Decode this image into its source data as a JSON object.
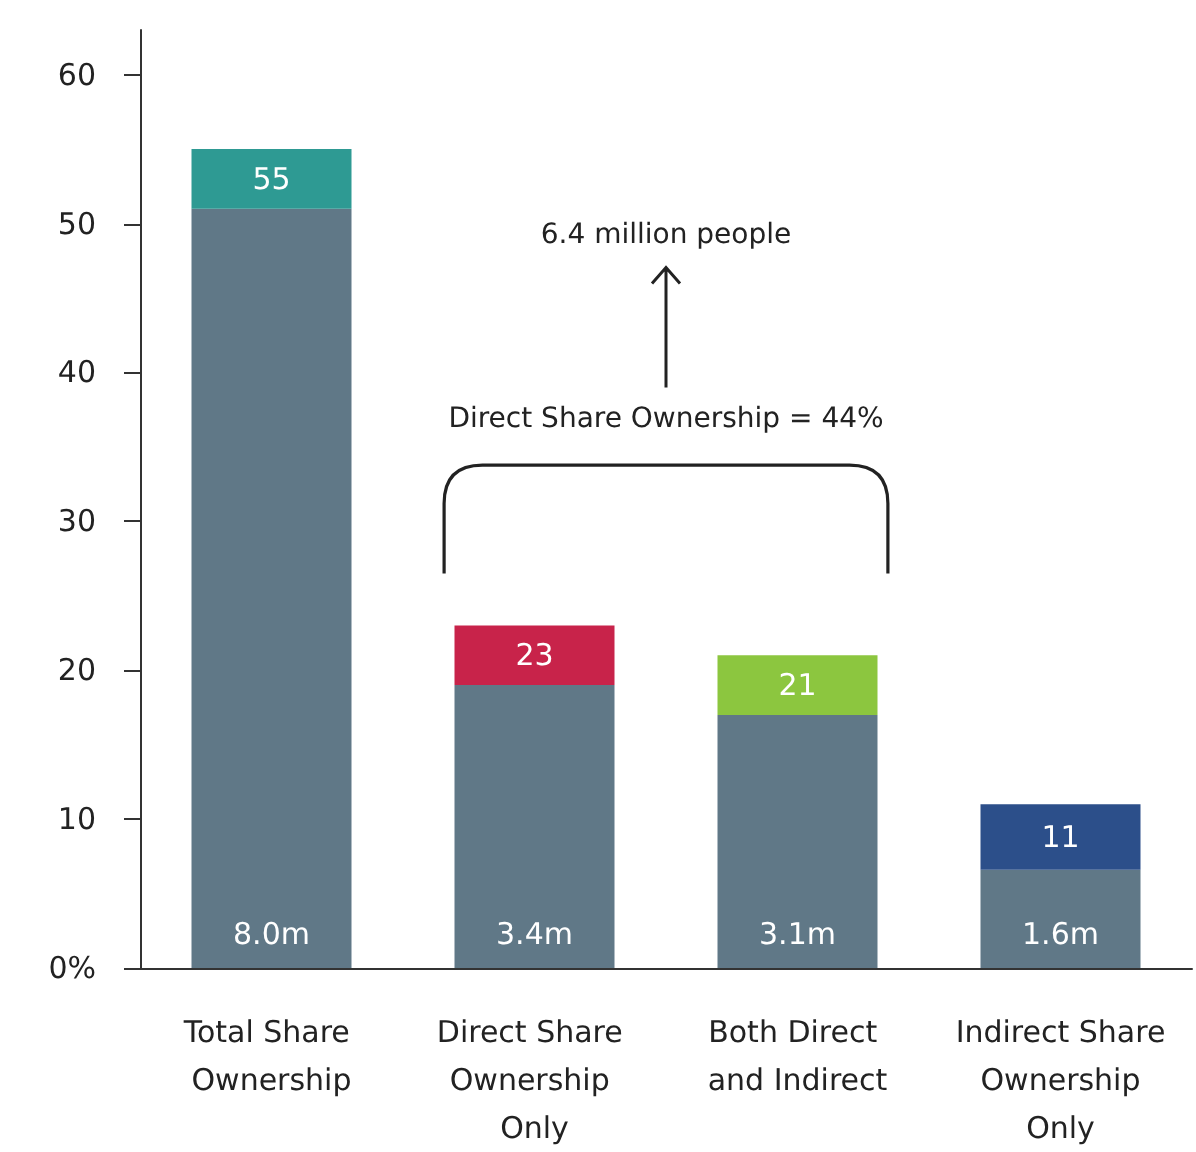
{
  "chart_data": {
    "type": "bar",
    "stacked": true,
    "categories": [
      "Total Share Ownership",
      "Direct Share Ownership Only",
      "Both Direct and Indirect",
      "Indirect Share Ownership Only"
    ],
    "series": [
      {
        "color": "#607887",
        "values": [
          51,
          19,
          17,
          6.6
        ]
      },
      {
        "colors": [
          "#2e9a93",
          "#c8234a",
          "#8cc63f",
          "#2c4f8a"
        ],
        "values": [
          4,
          4,
          4,
          4.4
        ]
      }
    ],
    "totals": [
      "55",
      "23",
      "21",
      "11"
    ],
    "ylim": [
      0,
      63
    ],
    "yticks": [
      {
        "value": 0,
        "label": "0%"
      },
      10,
      20,
      30,
      40,
      50,
      60
    ],
    "grid": false,
    "annotations": [
      "6.4 million people",
      "Direct Share Ownership = 44%",
      "8.0m",
      "3.4m",
      "3.1m",
      "1.6m"
    ]
  }
}
